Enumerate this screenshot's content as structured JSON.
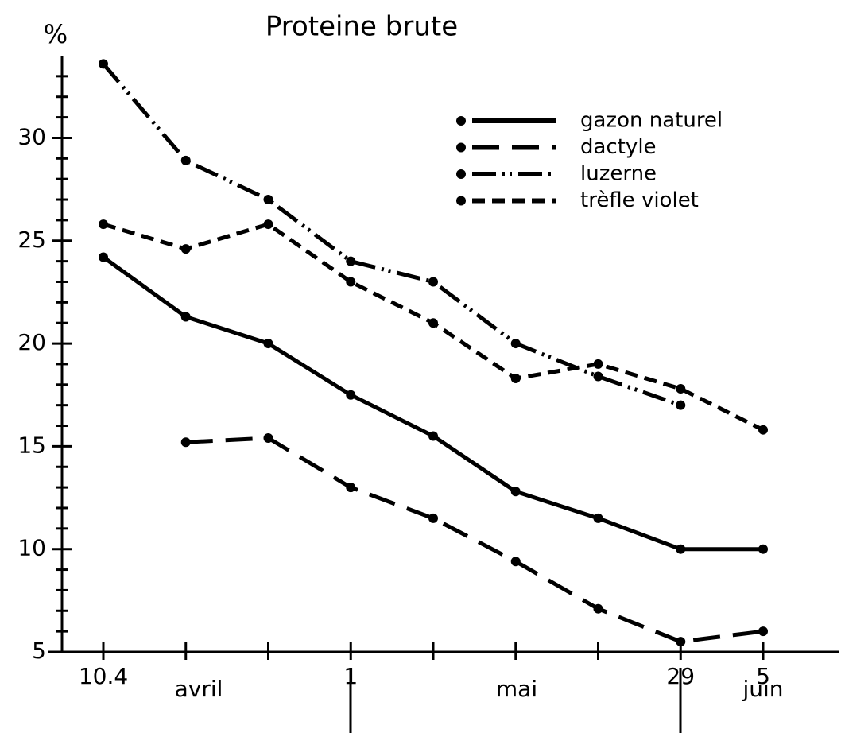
{
  "chart_data": {
    "type": "line",
    "title": "Proteine brute",
    "y_label": "%",
    "categories": [
      "10.4",
      null,
      null,
      "1",
      null,
      null,
      null,
      "29",
      "5"
    ],
    "annotations": [
      "avril",
      "mai",
      "juin"
    ],
    "ylim": [
      5,
      34
    ],
    "yticks": [
      5,
      10,
      15,
      20,
      25,
      30
    ],
    "yminorticks": [
      6,
      7,
      8,
      9,
      11,
      12,
      13,
      14,
      16,
      17,
      18,
      19,
      21,
      22,
      23,
      24,
      26,
      27,
      28,
      29,
      31,
      32,
      33
    ],
    "legend": "upper right",
    "series": [
      {
        "name": "gazon naturel",
        "color": "#000000",
        "dash": "solid",
        "values": [
          24.2,
          21.3,
          20,
          17.5,
          15.5,
          12.8,
          11.5,
          10,
          10
        ]
      },
      {
        "name": "dactyle",
        "color": "#000000",
        "dash": "long-dash",
        "values": [
          null,
          15.2,
          15.4,
          13,
          11.5,
          9.4,
          7.1,
          5.5,
          6
        ]
      },
      {
        "name": "luzerne",
        "color": "#000000",
        "dash": "dash-dot-dot",
        "values": [
          33.6,
          28.9,
          27,
          24,
          23,
          20,
          18.4,
          17,
          null
        ]
      },
      {
        "name": "trèfle violet",
        "color": "#000000",
        "dash": "short-dash",
        "values": [
          25.8,
          24.6,
          25.8,
          23,
          21,
          18.3,
          19,
          17.8,
          15.8
        ]
      }
    ]
  }
}
